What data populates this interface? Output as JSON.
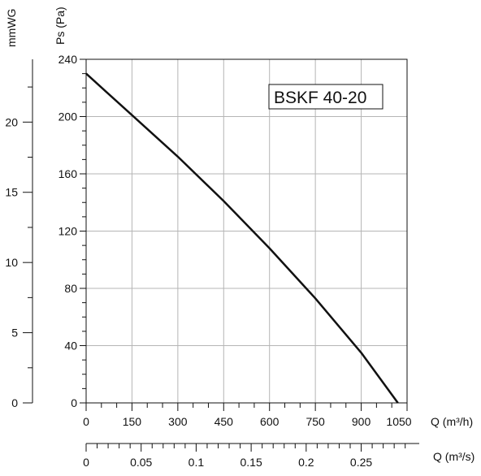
{
  "chart_data": {
    "type": "line",
    "model_label": "BSKF 40-20",
    "left_axis": {
      "label": "mmWG",
      "ticks": [
        "0",
        "5",
        "10",
        "15",
        "20"
      ],
      "tick_values": [
        0,
        5,
        10,
        15,
        20
      ]
    },
    "y_axis": {
      "label": "Ps (Pa)",
      "range": [
        0,
        240
      ],
      "ticks": [
        "0",
        "40",
        "80",
        "120",
        "160",
        "200",
        "240"
      ],
      "tick_values": [
        0,
        40,
        80,
        120,
        160,
        200,
        240
      ]
    },
    "x_axis": {
      "label": "Q (m³/h)",
      "range": [
        0,
        1050
      ],
      "ticks": [
        "0",
        "150",
        "300",
        "450",
        "600",
        "750",
        "900",
        "1050"
      ],
      "tick_values": [
        0,
        150,
        300,
        450,
        600,
        750,
        900,
        1050
      ]
    },
    "x2_axis": {
      "label": "Q (m³/s)",
      "ticks": [
        "0",
        "0.05",
        "0.1",
        "0.15",
        "0.2",
        "0.25"
      ],
      "tick_values": [
        0,
        0.05,
        0.1,
        0.15,
        0.2,
        0.25
      ],
      "range_max": 0.2917
    },
    "grid": true,
    "series": [
      {
        "x": [
          0,
          150,
          300,
          450,
          600,
          750,
          900,
          1020
        ],
        "y": [
          230,
          201,
          172,
          141,
          108,
          73,
          35,
          0
        ]
      }
    ],
    "colors": {
      "curve": "#111111",
      "grid": "#b5b5b5",
      "axis": "#111111"
    }
  }
}
